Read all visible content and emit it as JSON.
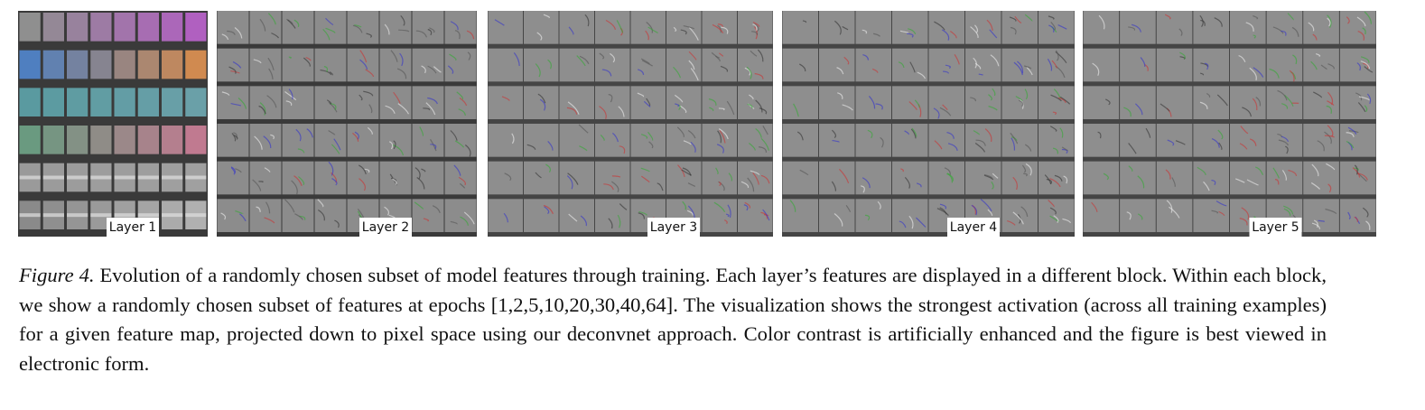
{
  "figure": {
    "panels": [
      {
        "label": "Layer 1"
      },
      {
        "label": "Layer 2"
      },
      {
        "label": "Layer 3"
      },
      {
        "label": "Layer 4"
      },
      {
        "label": "Layer 5"
      }
    ]
  },
  "caption": {
    "label": "Figure 4.",
    "text": "Evolution of a randomly chosen subset of model features through training. Each layer’s features are displayed in a different block. Within each block, we show a randomly chosen subset of features at epochs [1,2,5,10,20,30,40,64]. The visualization shows the strongest activation (across all training examples) for a given feature map, projected down to pixel space using our deconvnet approach. Color contrast is artificially enhanced and the figure is best viewed in electronic form."
  }
}
